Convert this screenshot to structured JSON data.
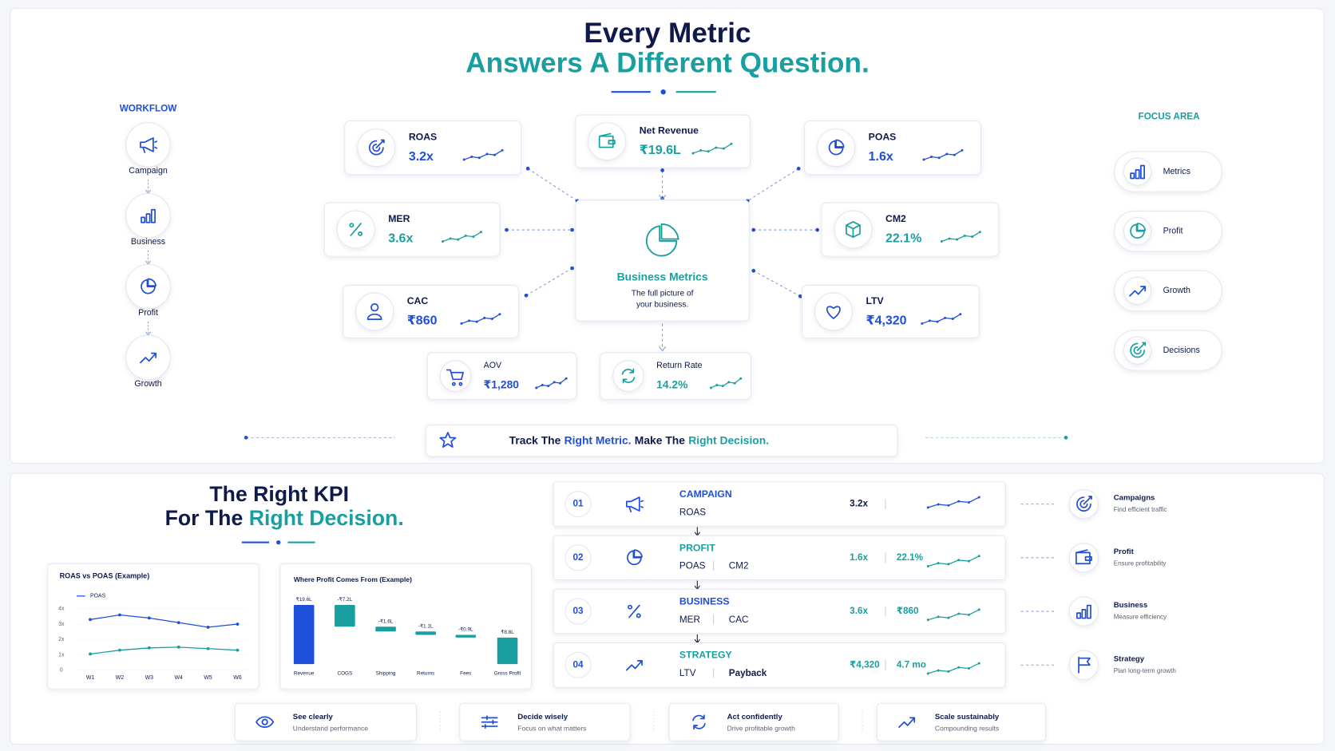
{
  "header": {
    "line1": "Every Metric",
    "line2": "Answers A Different Question."
  },
  "workflow": {
    "label": "WORKFLOW",
    "steps": [
      "Campaign",
      "Business",
      "Profit",
      "Growth"
    ]
  },
  "focus_area": {
    "label": "FOCUS AREA",
    "items": [
      "Metrics",
      "Profit",
      "Growth",
      "Decisions"
    ]
  },
  "center": {
    "title": "Business Metrics",
    "text_line1": "The full picture of",
    "text_line2": "your business."
  },
  "metrics": [
    {
      "name": "ROAS",
      "value": "3.2x",
      "color": "#1f4fd8"
    },
    {
      "name": "Net Revenue",
      "value": "₹19.6L",
      "color": "#1a9fa0"
    },
    {
      "name": "POAS",
      "value": "1.6x",
      "color": "#1f4fd8"
    },
    {
      "name": "MER",
      "value": "3.6x",
      "color": "#1a9fa0"
    },
    {
      "name": "CM2",
      "value": "22.1%",
      "color": "#1a9fa0"
    },
    {
      "name": "CAC",
      "value": "₹860",
      "color": "#1f4fd8"
    },
    {
      "name": "LTV",
      "value": "₹4,320",
      "color": "#1f4fd8"
    },
    {
      "name": "AOV",
      "value": "₹1,280",
      "color": "#1f4fd8"
    },
    {
      "name": "Return Rate",
      "value": "14.2%",
      "color": "#1a9fa0"
    }
  ],
  "tagline": {
    "part1": "Track The",
    "part2": "Right Metric.",
    "part3": "Make The",
    "part4": "Right Decision."
  },
  "kpi_header": {
    "line1": "The Right KPI",
    "line2_a": "For The",
    "line2_b": "Right Decision."
  },
  "roas_chart": {
    "type": "line",
    "title": "ROAS vs POAS (Example)",
    "categories": [
      "W1",
      "W2",
      "W3",
      "W4",
      "W5",
      "W6"
    ],
    "series": [
      {
        "color": "#1f4fd8",
        "values": [
          3.3,
          3.6,
          3.4,
          3.1,
          2.8,
          3.0
        ]
      },
      {
        "name": "POAS",
        "color": "#1a9fa0",
        "values": [
          1.05,
          1.3,
          1.45,
          1.5,
          1.4,
          1.3
        ]
      }
    ],
    "ylim": [
      0,
      4
    ],
    "yticks": [
      0,
      {
        "value": 1,
        "label": "1x"
      },
      {
        "value": 2,
        "label": "2x"
      },
      {
        "value": 3,
        "label": "3x"
      },
      {
        "value": 4,
        "label": "4x"
      }
    ]
  },
  "waterfall_chart": {
    "type": "waterfall",
    "title": "Where Profit Comes From (Example)",
    "categories": [
      "Revenue",
      "COGS",
      "Shipping",
      "Returns",
      "Fees",
      "Gross Profit"
    ],
    "values": [
      19.6,
      -7.2,
      -1.6,
      -1.1,
      -0.9,
      8.8
    ],
    "value_labels": [
      "₹19.6L",
      "-₹7.2L",
      "-₹1.6L",
      "-₹1.1L",
      "-₹0.9L",
      "₹8.8L"
    ],
    "totals": [
      true,
      false,
      false,
      false,
      false,
      true
    ],
    "colors": {
      "total_start": "#1f4fd8",
      "step": "#1a9fa0",
      "total_end": "#1a9fa0"
    },
    "ylim": [
      0,
      20
    ]
  },
  "kpi_rows": [
    {
      "number": "01",
      "category": "CAMPAIGN",
      "metrics": [
        "ROAS"
      ],
      "values": [
        "3.2x"
      ],
      "focus_title": "Campaigns",
      "focus_desc": "Find efficient traffic"
    },
    {
      "number": "02",
      "category": "PROFIT",
      "metrics": [
        "POAS",
        "CM2"
      ],
      "values": [
        "1.6x",
        "22.1%"
      ],
      "focus_title": "Profit",
      "focus_desc": "Ensure profitability"
    },
    {
      "number": "03",
      "category": "BUSINESS",
      "metrics": [
        "MER",
        "CAC"
      ],
      "values": [
        "3.6x",
        "₹860"
      ],
      "focus_title": "Business",
      "focus_desc": "Measure efficiency"
    },
    {
      "number": "04",
      "category": "STRATEGY",
      "metrics": [
        "LTV",
        "Payback"
      ],
      "values": [
        "₹4,320",
        "4.7 mo"
      ],
      "focus_title": "Strategy",
      "focus_desc": "Plan long-term growth"
    }
  ],
  "footer": [
    {
      "title": "See clearly",
      "desc": "Understand performance"
    },
    {
      "title": "Decide wisely",
      "desc": "Focus on what matters"
    },
    {
      "title": "Act confidently",
      "desc": "Drive profitable growth"
    },
    {
      "title": "Scale sustainably",
      "desc": "Compounding results"
    }
  ]
}
